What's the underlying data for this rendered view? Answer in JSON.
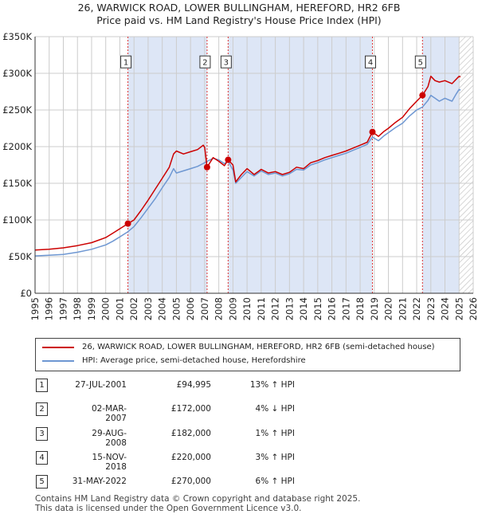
{
  "title_line1": "26, WARWICK ROAD, LOWER BULLINGHAM, HEREFORD, HR2 6FB",
  "title_line2": "Price paid vs. HM Land Registry's House Price Index (HPI)",
  "colors": {
    "property": "#cc0000",
    "hpi": "#6e97d2",
    "shade": "#dde6f6",
    "grid": "#cccccc",
    "marker_line": "#dd3333"
  },
  "chart_data": {
    "type": "line",
    "title": "Price paid vs. HM Land Registry's House Price Index (HPI)",
    "xlabel": "",
    "ylabel": "",
    "xlim": [
      1995,
      2026
    ],
    "ylim": [
      0,
      350000
    ],
    "x_ticks": [
      1995,
      1996,
      1997,
      1998,
      1999,
      2000,
      2001,
      2002,
      2003,
      2004,
      2005,
      2006,
      2007,
      2008,
      2009,
      2010,
      2011,
      2012,
      2013,
      2014,
      2015,
      2016,
      2017,
      2018,
      2019,
      2020,
      2021,
      2022,
      2023,
      2024,
      2025,
      2026
    ],
    "y_ticks": [
      0,
      50000,
      100000,
      150000,
      200000,
      250000,
      300000,
      350000
    ],
    "y_tick_labels": [
      "£0",
      "£50K",
      "£100K",
      "£150K",
      "£200K",
      "£250K",
      "£300K",
      "£350K"
    ],
    "shaded_ranges": [
      [
        2001.57,
        2007.17
      ],
      [
        2008.66,
        2018.87
      ],
      [
        2022.41,
        2025.0
      ]
    ],
    "hatched_from": 2025.0,
    "series": [
      {
        "name": "26, WARWICK ROAD, LOWER BULLINGHAM, HEREFORD, HR2 6FB (semi-detached house)",
        "color": "#cc0000",
        "points": [
          [
            1995.0,
            59000
          ],
          [
            1996.0,
            60000
          ],
          [
            1997.0,
            62000
          ],
          [
            1998.0,
            65000
          ],
          [
            1999.0,
            69000
          ],
          [
            2000.0,
            76000
          ],
          [
            2000.5,
            82000
          ],
          [
            2001.0,
            88000
          ],
          [
            2001.57,
            94995
          ],
          [
            2002.0,
            100000
          ],
          [
            2002.5,
            113000
          ],
          [
            2003.0,
            127000
          ],
          [
            2003.5,
            142000
          ],
          [
            2004.0,
            157000
          ],
          [
            2004.5,
            172000
          ],
          [
            2004.8,
            190000
          ],
          [
            2005.0,
            194000
          ],
          [
            2005.5,
            190000
          ],
          [
            2006.0,
            193000
          ],
          [
            2006.5,
            196000
          ],
          [
            2006.9,
            202000
          ],
          [
            2007.0,
            199000
          ],
          [
            2007.17,
            172000
          ],
          [
            2007.6,
            185000
          ],
          [
            2008.0,
            180000
          ],
          [
            2008.4,
            174000
          ],
          [
            2008.66,
            182000
          ],
          [
            2009.0,
            175000
          ],
          [
            2009.2,
            152000
          ],
          [
            2009.6,
            162000
          ],
          [
            2010.0,
            170000
          ],
          [
            2010.5,
            162000
          ],
          [
            2011.0,
            169000
          ],
          [
            2011.5,
            164000
          ],
          [
            2012.0,
            166000
          ],
          [
            2012.5,
            162000
          ],
          [
            2013.0,
            165000
          ],
          [
            2013.5,
            172000
          ],
          [
            2014.0,
            170000
          ],
          [
            2014.5,
            178000
          ],
          [
            2015.0,
            181000
          ],
          [
            2015.5,
            185000
          ],
          [
            2016.0,
            188000
          ],
          [
            2016.5,
            191000
          ],
          [
            2017.0,
            194000
          ],
          [
            2017.5,
            198000
          ],
          [
            2018.0,
            202000
          ],
          [
            2018.5,
            206000
          ],
          [
            2018.87,
            220000
          ],
          [
            2019.3,
            214000
          ],
          [
            2019.7,
            221000
          ],
          [
            2020.0,
            225000
          ],
          [
            2020.5,
            233000
          ],
          [
            2021.0,
            240000
          ],
          [
            2021.5,
            252000
          ],
          [
            2022.0,
            262000
          ],
          [
            2022.41,
            270000
          ],
          [
            2022.8,
            282000
          ],
          [
            2023.0,
            296000
          ],
          [
            2023.3,
            290000
          ],
          [
            2023.6,
            288000
          ],
          [
            2024.0,
            290000
          ],
          [
            2024.5,
            286000
          ],
          [
            2024.8,
            292000
          ],
          [
            2025.0,
            296000
          ],
          [
            2025.1,
            295000
          ]
        ]
      },
      {
        "name": "HPI: Average price, semi-detached house, Herefordshire",
        "color": "#6e97d2",
        "points": [
          [
            1995.0,
            51000
          ],
          [
            1996.0,
            52000
          ],
          [
            1997.0,
            53000
          ],
          [
            1998.0,
            56000
          ],
          [
            1999.0,
            60000
          ],
          [
            2000.0,
            66000
          ],
          [
            2000.5,
            71000
          ],
          [
            2001.0,
            77000
          ],
          [
            2001.57,
            84000
          ],
          [
            2002.0,
            91000
          ],
          [
            2002.5,
            103000
          ],
          [
            2003.0,
            116000
          ],
          [
            2003.5,
            129000
          ],
          [
            2004.0,
            144000
          ],
          [
            2004.5,
            158000
          ],
          [
            2004.8,
            170000
          ],
          [
            2005.0,
            164000
          ],
          [
            2005.5,
            167000
          ],
          [
            2006.0,
            170000
          ],
          [
            2006.5,
            173000
          ],
          [
            2007.0,
            178000
          ],
          [
            2007.17,
            180000
          ],
          [
            2007.6,
            184000
          ],
          [
            2008.0,
            182000
          ],
          [
            2008.4,
            177000
          ],
          [
            2008.66,
            180000
          ],
          [
            2009.0,
            168000
          ],
          [
            2009.2,
            150000
          ],
          [
            2009.6,
            158000
          ],
          [
            2010.0,
            166000
          ],
          [
            2010.5,
            160000
          ],
          [
            2011.0,
            167000
          ],
          [
            2011.5,
            162000
          ],
          [
            2012.0,
            164000
          ],
          [
            2012.5,
            160000
          ],
          [
            2013.0,
            163000
          ],
          [
            2013.5,
            169000
          ],
          [
            2014.0,
            168000
          ],
          [
            2014.5,
            175000
          ],
          [
            2015.0,
            178000
          ],
          [
            2015.5,
            182000
          ],
          [
            2016.0,
            185000
          ],
          [
            2016.5,
            188000
          ],
          [
            2017.0,
            191000
          ],
          [
            2017.5,
            195000
          ],
          [
            2018.0,
            199000
          ],
          [
            2018.5,
            203000
          ],
          [
            2018.87,
            213000
          ],
          [
            2019.3,
            208000
          ],
          [
            2019.7,
            215000
          ],
          [
            2020.0,
            219000
          ],
          [
            2020.5,
            226000
          ],
          [
            2021.0,
            232000
          ],
          [
            2021.5,
            242000
          ],
          [
            2022.0,
            250000
          ],
          [
            2022.41,
            254000
          ],
          [
            2022.8,
            263000
          ],
          [
            2023.0,
            270000
          ],
          [
            2023.3,
            266000
          ],
          [
            2023.6,
            262000
          ],
          [
            2024.0,
            266000
          ],
          [
            2024.5,
            262000
          ],
          [
            2024.8,
            272000
          ],
          [
            2025.0,
            278000
          ],
          [
            2025.1,
            277000
          ]
        ]
      }
    ],
    "sales": [
      {
        "label": "1",
        "x": 2001.57,
        "y": 94995
      },
      {
        "label": "2",
        "x": 2007.17,
        "y": 172000
      },
      {
        "label": "3",
        "x": 2008.66,
        "y": 182000
      },
      {
        "label": "4",
        "x": 2018.87,
        "y": 220000
      },
      {
        "label": "5",
        "x": 2022.41,
        "y": 270000
      }
    ],
    "sale_label_y": 315000
  },
  "legend": {
    "property_label": "26, WARWICK ROAD, LOWER BULLINGHAM, HEREFORD, HR2 6FB (semi-detached house)",
    "hpi_label": "HPI: Average price, semi-detached house, Herefordshire"
  },
  "transactions": [
    {
      "num": "1",
      "date": "27-JUL-2001",
      "price": "£94,995",
      "pct": "13% ↑ HPI"
    },
    {
      "num": "2",
      "date": "02-MAR-2007",
      "price": "£172,000",
      "pct": "4% ↓ HPI"
    },
    {
      "num": "3",
      "date": "29-AUG-2008",
      "price": "£182,000",
      "pct": "1% ↑ HPI"
    },
    {
      "num": "4",
      "date": "15-NOV-2018",
      "price": "£220,000",
      "pct": "3% ↑ HPI"
    },
    {
      "num": "5",
      "date": "31-MAY-2022",
      "price": "£270,000",
      "pct": "6% ↑ HPI"
    }
  ],
  "footer_line1": "Contains HM Land Registry data © Crown copyright and database right 2025.",
  "footer_line2": "This data is licensed under the Open Government Licence v3.0."
}
